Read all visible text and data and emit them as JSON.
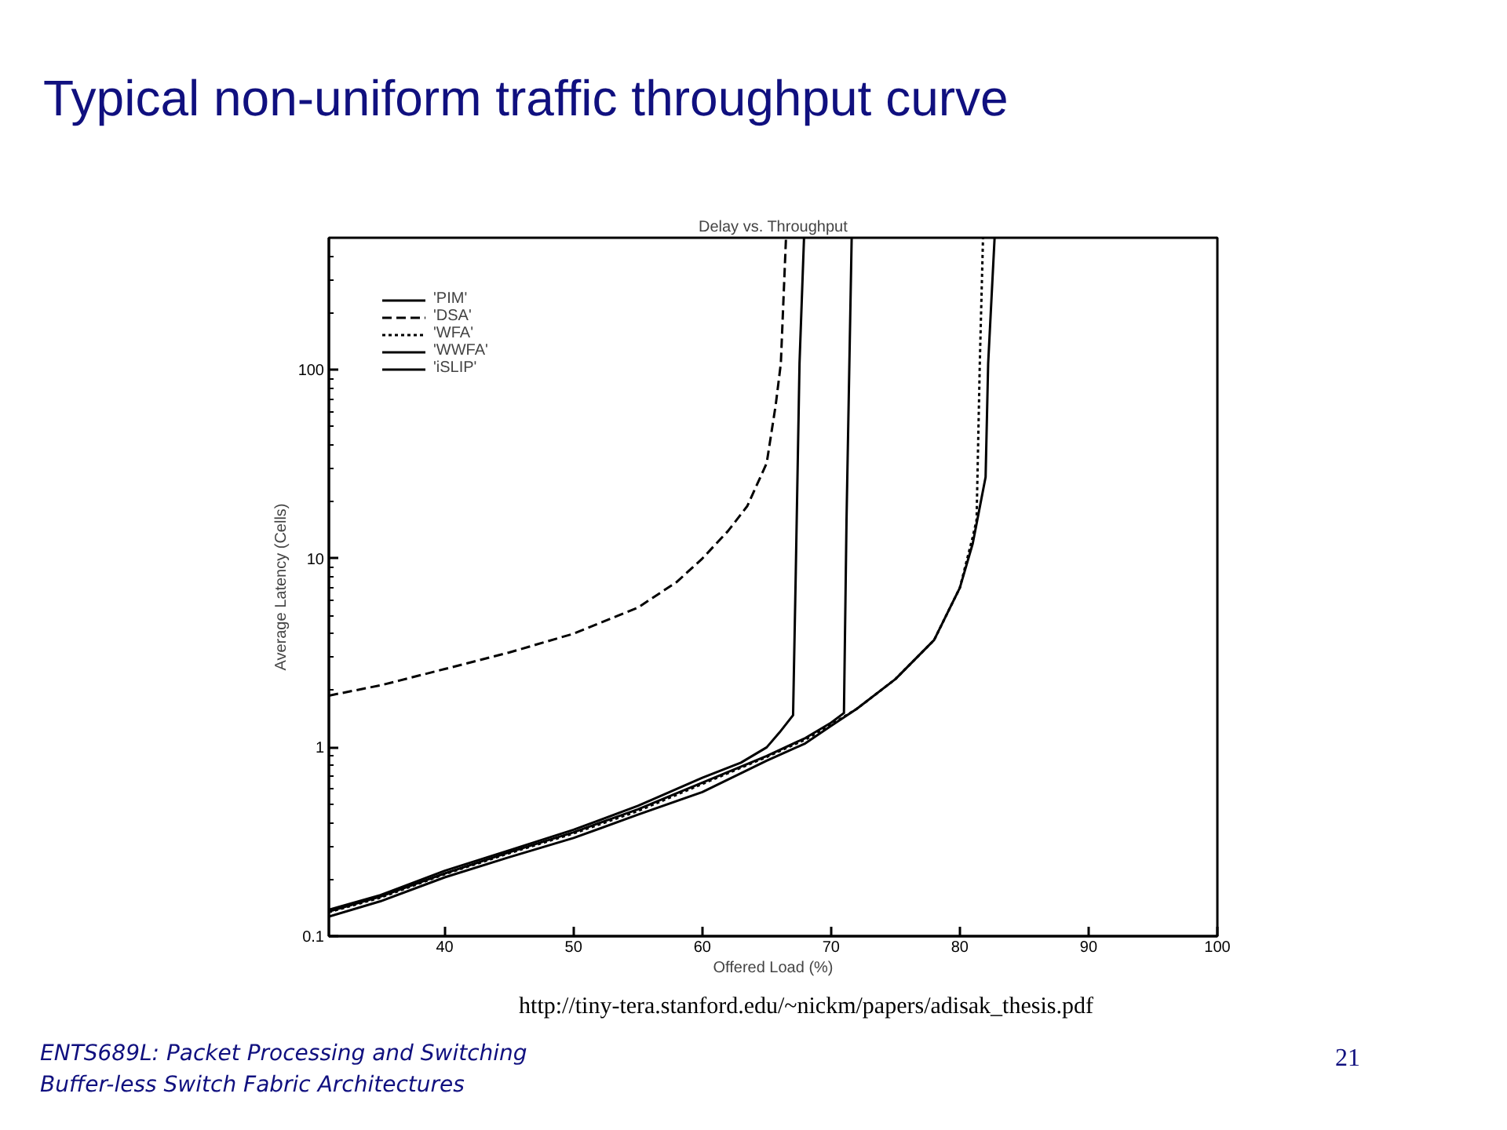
{
  "chart_data": {
    "type": "line",
    "title": "Typical non-uniform traffic throughput curve",
    "subtitle": "Delay vs. Throughput",
    "xlabel": "Offered Load (%)",
    "ylabel": "Average Latency (Cells)",
    "annotations": [
      "http://tiny-tera.stanford.edu/~nickm/papers/adisak_thesis.pdf",
      "ENTS689L: Packet Processing and Switching",
      "Buffer-less Switch Fabric Architectures",
      "21"
    ],
    "xlim": [
      31,
      100
    ],
    "ylim": [
      0.1,
      500
    ],
    "xticks": [
      40,
      50,
      60,
      70,
      80,
      90,
      100
    ],
    "yticks": [
      0.1,
      1,
      10,
      100
    ],
    "log": "y",
    "grid": false,
    "legend": "top left",
    "series": [
      {
        "name": "'PIM'",
        "color": "#000000",
        "line_style": "solid",
        "x": [
          31,
          35,
          40,
          45,
          50,
          55,
          60,
          63,
          65,
          66,
          67.05,
          67.26,
          67.55,
          67.9
        ],
        "values": [
          0.138,
          0.165,
          0.222,
          0.285,
          0.366,
          0.49,
          0.69,
          0.83,
          1.0,
          1.2,
          1.48,
          8.5,
          108,
          500
        ]
      },
      {
        "name": "'DSA'",
        "color": "#000000",
        "line_style": "dashed",
        "x": [
          31,
          35,
          40,
          45,
          50,
          55,
          58,
          60,
          62,
          63.5,
          65,
          65.7,
          66.1,
          66.5
        ],
        "values": [
          1.88,
          2.13,
          2.6,
          3.18,
          4.0,
          5.5,
          7.5,
          10,
          14,
          19,
          32,
          65,
          108,
          500
        ]
      },
      {
        "name": "'WFA'",
        "color": "#000000",
        "line_style": "dotted",
        "x": [
          31,
          35,
          40,
          45,
          50,
          55,
          60,
          65,
          68,
          70,
          72,
          75,
          78,
          80,
          81,
          81.3,
          81.55,
          81.8
        ],
        "values": [
          0.134,
          0.16,
          0.213,
          0.275,
          0.35,
          0.46,
          0.64,
          0.89,
          1.1,
          1.32,
          1.6,
          2.3,
          3.7,
          7.0,
          13,
          16,
          108,
          500
        ]
      },
      {
        "name": "'WWFA'",
        "color": "#000000",
        "line_style": "solid",
        "x": [
          31,
          35,
          40,
          45,
          50,
          55,
          60,
          65,
          68,
          70,
          72,
          75,
          78,
          80,
          81,
          81.5,
          82.0,
          82.2,
          82.7
        ],
        "values": [
          0.127,
          0.153,
          0.205,
          0.262,
          0.331,
          0.44,
          0.58,
          0.85,
          1.05,
          1.3,
          1.6,
          2.3,
          3.7,
          7.0,
          12,
          18,
          27,
          108,
          500
        ]
      },
      {
        "name": "'iSLIP'",
        "color": "#000000",
        "line_style": "solid",
        "x": [
          31,
          35,
          40,
          45,
          50,
          55,
          60,
          65,
          68,
          70,
          71.0,
          71.2,
          71.6
        ],
        "values": [
          0.135,
          0.162,
          0.215,
          0.278,
          0.355,
          0.47,
          0.65,
          0.9,
          1.12,
          1.35,
          1.52,
          16,
          500
        ]
      }
    ]
  }
}
